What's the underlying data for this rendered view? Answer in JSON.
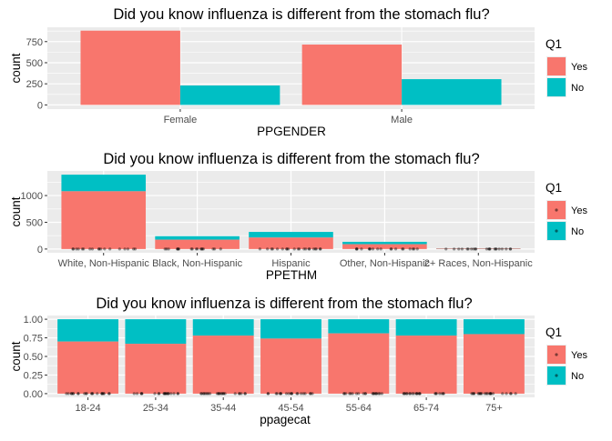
{
  "charts": [
    {
      "key": "p1",
      "title": "Did you know influenza is different from the stomach flu?",
      "xlabel": "PPGENDER",
      "ylabel": "count",
      "legend_title": "Q1"
    },
    {
      "key": "p2",
      "title": "Did you know influenza is different from the stomach flu?",
      "xlabel": "PPETHM",
      "ylabel": "count",
      "legend_title": "Q1"
    },
    {
      "key": "p3",
      "title": "Did you know influenza is different from the stomach flu?",
      "xlabel": "ppagecat",
      "ylabel": "count",
      "legend_title": "Q1"
    }
  ],
  "colors": {
    "Yes": "#F8766D",
    "No": "#00BFC4",
    "panel": "#EBEBEB",
    "grid": "#FFFFFF",
    "points": "#000000"
  },
  "chart_data": [
    {
      "type": "bar",
      "position": "dodge",
      "title": "Did you know influenza is different from the stomach flu?",
      "xlabel": "PPGENDER",
      "ylabel": "count",
      "categories": [
        "Female",
        "Male"
      ],
      "series": [
        {
          "name": "Yes",
          "values": [
            880,
            715
          ]
        },
        {
          "name": "No",
          "values": [
            230,
            305
          ]
        }
      ],
      "ylim": [
        -50,
        920
      ],
      "yticks": [
        0,
        250,
        500,
        750
      ],
      "legend_title": "Q1",
      "legend_position": "right",
      "grid": true
    },
    {
      "type": "bar",
      "position": "stack",
      "overlay": "jittered points at y=0",
      "title": "Did you know influenza is different from the stomach flu?",
      "xlabel": "PPETHM",
      "ylabel": "count",
      "categories": [
        "White, Non-Hispanic",
        "Black, Non-Hispanic",
        "Hispanic",
        "Other, Non-Hispanic",
        "2+ Races, Non-Hispanic"
      ],
      "series": [
        {
          "name": "Yes",
          "values": [
            1080,
            175,
            215,
            90,
            10
          ]
        },
        {
          "name": "No",
          "values": [
            310,
            65,
            105,
            45,
            5
          ]
        }
      ],
      "ylim": [
        -70,
        1460
      ],
      "yticks": [
        0,
        500,
        1000
      ],
      "legend_title": "Q1",
      "legend_position": "right",
      "grid": true
    },
    {
      "type": "bar",
      "position": "fill",
      "overlay": "jittered points at y=0",
      "title": "Did you know influenza is different from the stomach flu?",
      "xlabel": "ppagecat",
      "ylabel": "count",
      "categories": [
        "18-24",
        "25-34",
        "35-44",
        "45-54",
        "55-64",
        "65-74",
        "75+"
      ],
      "series": [
        {
          "name": "Yes",
          "values": [
            0.7,
            0.67,
            0.78,
            0.74,
            0.81,
            0.78,
            0.8
          ]
        },
        {
          "name": "No",
          "values": [
            0.3,
            0.33,
            0.22,
            0.26,
            0.19,
            0.22,
            0.2
          ]
        }
      ],
      "ylim": [
        -0.05,
        1.05
      ],
      "yticks": [
        0.0,
        0.25,
        0.5,
        0.75,
        1.0
      ],
      "ytick_labels": [
        "0.00",
        "0.25",
        "0.50",
        "0.75",
        "1.00"
      ],
      "legend_title": "Q1",
      "legend_position": "right",
      "grid": true
    }
  ]
}
